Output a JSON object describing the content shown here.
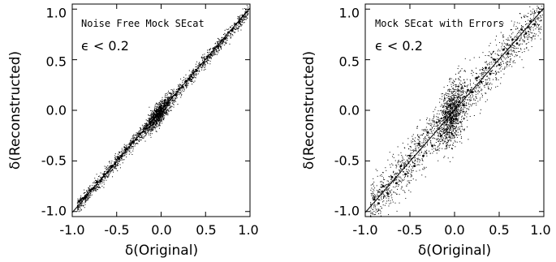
{
  "chart_data": [
    {
      "type": "scatter",
      "annotation": "Noise Free Mock SEcat",
      "condition": "ϵ < 0.2",
      "xlabel": "δ(Original)",
      "ylabel": "δ(Reconstructed)",
      "xlim": [
        -1.0,
        1.0
      ],
      "ylim": [
        -1.05,
        1.05
      ],
      "xticks": [
        "-1.0",
        "-0.5",
        "0.0",
        "0.5",
        "1.0"
      ],
      "yticks": [
        "-1.0",
        "-0.5",
        "0.0",
        "0.5",
        "1.0"
      ],
      "reference_line": {
        "x": [
          -1.0,
          1.0
        ],
        "y": [
          -1.0,
          1.0
        ]
      },
      "grid": false,
      "point_color": "#000000",
      "points_description": "dense cloud tightly along the 1:1 line, scatter ~0.03, densest near (0,0)",
      "points": [
        [
          -0.92,
          -0.9
        ],
        [
          -0.88,
          -0.87
        ],
        [
          -0.85,
          -0.86
        ],
        [
          -0.8,
          -0.79
        ],
        [
          -0.76,
          -0.77
        ],
        [
          -0.72,
          -0.71
        ],
        [
          -0.68,
          -0.7
        ],
        [
          -0.64,
          -0.63
        ],
        [
          -0.6,
          -0.61
        ],
        [
          -0.56,
          -0.55
        ],
        [
          -0.52,
          -0.53
        ],
        [
          -0.48,
          -0.47
        ],
        [
          -0.44,
          -0.45
        ],
        [
          -0.4,
          -0.39
        ],
        [
          -0.36,
          -0.37
        ],
        [
          -0.32,
          -0.31
        ],
        [
          -0.28,
          -0.29
        ],
        [
          -0.24,
          -0.23
        ],
        [
          -0.2,
          -0.21
        ],
        [
          -0.16,
          -0.15
        ],
        [
          -0.12,
          -0.13
        ],
        [
          -0.08,
          -0.07
        ],
        [
          -0.04,
          -0.05
        ],
        [
          0.0,
          0.0
        ],
        [
          0.04,
          0.05
        ],
        [
          0.08,
          0.07
        ],
        [
          0.12,
          0.13
        ],
        [
          0.16,
          0.15
        ],
        [
          0.2,
          0.21
        ],
        [
          0.24,
          0.23
        ],
        [
          0.28,
          0.29
        ],
        [
          0.32,
          0.31
        ],
        [
          0.36,
          0.37
        ],
        [
          0.4,
          0.39
        ],
        [
          0.44,
          0.45
        ],
        [
          0.48,
          0.47
        ],
        [
          0.52,
          0.53
        ],
        [
          0.56,
          0.55
        ],
        [
          0.6,
          0.61
        ],
        [
          0.64,
          0.63
        ],
        [
          0.68,
          0.69
        ],
        [
          0.72,
          0.71
        ],
        [
          0.76,
          0.77
        ],
        [
          0.8,
          0.79
        ],
        [
          0.84,
          0.85
        ],
        [
          0.88,
          0.87
        ],
        [
          0.92,
          0.93
        ],
        [
          0.96,
          0.97
        ]
      ]
    },
    {
      "type": "scatter",
      "annotation": "Mock SEcat with Errors",
      "condition": "ϵ < 0.2",
      "xlabel": "δ(Original)",
      "ylabel": "δ(Reconstructed)",
      "xlim": [
        -1.0,
        1.0
      ],
      "ylim": [
        -1.05,
        1.05
      ],
      "xticks": [
        "-1.0",
        "-0.5",
        "0.0",
        "0.5",
        "1.0"
      ],
      "yticks": [
        "-1.0",
        "-0.5",
        "0.0",
        "0.5",
        "1.0"
      ],
      "reference_line": {
        "x": [
          -1.0,
          1.0
        ],
        "y": [
          -1.0,
          1.0
        ]
      },
      "grid": false,
      "point_color": "#000000",
      "points_description": "broader cloud along the 1:1 line, scatter ~0.1, large dense blob around x≈0, y≈0",
      "points": [
        [
          -0.9,
          -0.88
        ],
        [
          -0.85,
          -0.92
        ],
        [
          -0.8,
          -0.75
        ],
        [
          -0.75,
          -0.82
        ],
        [
          -0.7,
          -0.66
        ],
        [
          -0.65,
          -0.72
        ],
        [
          -0.6,
          -0.55
        ],
        [
          -0.55,
          -0.63
        ],
        [
          -0.5,
          -0.45
        ],
        [
          -0.45,
          -0.55
        ],
        [
          -0.4,
          -0.33
        ],
        [
          -0.35,
          -0.45
        ],
        [
          -0.3,
          -0.22
        ],
        [
          -0.25,
          -0.35
        ],
        [
          -0.2,
          -0.12
        ],
        [
          -0.15,
          -0.25
        ],
        [
          -0.1,
          -0.02
        ],
        [
          -0.05,
          0.05
        ],
        [
          0.0,
          0.0
        ],
        [
          0.05,
          0.08
        ],
        [
          0.1,
          0.05
        ],
        [
          0.15,
          0.2
        ],
        [
          0.2,
          0.18
        ],
        [
          0.25,
          0.32
        ],
        [
          0.3,
          0.28
        ],
        [
          0.35,
          0.42
        ],
        [
          0.4,
          0.36
        ],
        [
          0.45,
          0.5
        ],
        [
          0.5,
          0.45
        ],
        [
          0.55,
          0.6
        ],
        [
          0.6,
          0.56
        ],
        [
          0.65,
          0.7
        ],
        [
          0.7,
          0.66
        ],
        [
          0.75,
          0.8
        ],
        [
          0.8,
          0.76
        ],
        [
          0.85,
          0.88
        ],
        [
          0.9,
          0.85
        ],
        [
          0.95,
          0.97
        ]
      ]
    }
  ]
}
